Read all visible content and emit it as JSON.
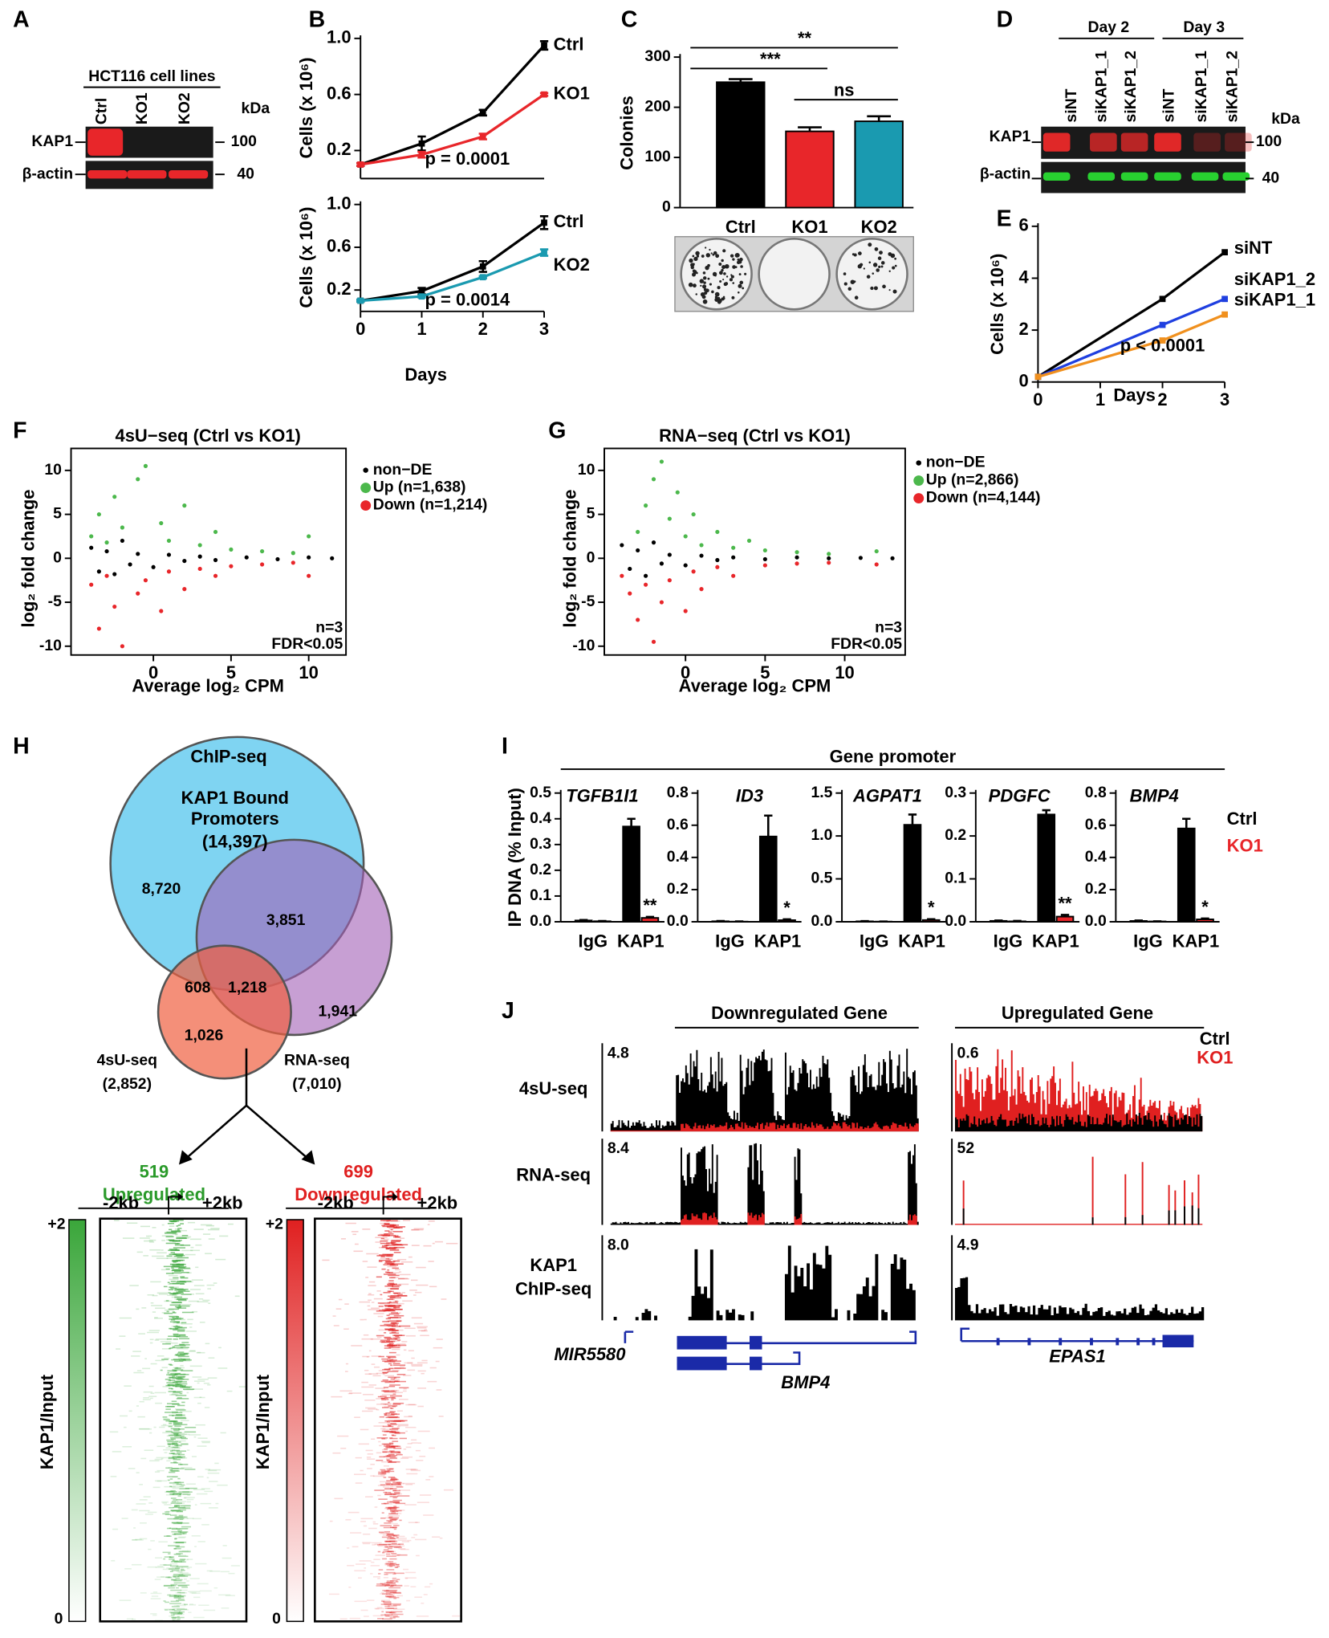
{
  "panel_labels": [
    "A",
    "B",
    "C",
    "D",
    "E",
    "F",
    "G",
    "H",
    "I",
    "J"
  ],
  "panel_a": {
    "header": "HCT116 cell lines",
    "lanes": [
      "Ctrl",
      "KO1",
      "KO2"
    ],
    "unit": "kDa",
    "rows": [
      {
        "name": "KAP1",
        "marker": "100"
      },
      {
        "name": "β-actin",
        "marker": "40"
      }
    ]
  },
  "panel_d": {
    "groups": [
      "Day 2",
      "Day 3"
    ],
    "lanes": [
      "siNT",
      "siKAP1_1",
      "siKAP1_2",
      "siNT",
      "siKAP1_1",
      "siKAP1_2"
    ],
    "unit": "kDa",
    "rows": [
      {
        "name": "KAP1",
        "marker": "100"
      },
      {
        "name": "β-actin",
        "marker": "40"
      }
    ]
  },
  "chart_data": [
    {
      "type": "line",
      "ylabel": "Cells (x 10⁶)",
      "x": [
        0,
        1,
        2,
        3
      ],
      "xlim": [
        0,
        3
      ],
      "ylim": [
        0,
        1
      ],
      "yticks": [
        0.2,
        0.6,
        {
          "value": 1,
          "label": "1.0"
        }
      ],
      "annotation": "p = 0.0001",
      "series": [
        {
          "name": "Ctrl",
          "color": "#000000",
          "values": [
            0.1,
            0.25,
            0.47,
            0.95
          ],
          "errors": [
            0.01,
            0.05,
            0.02,
            0.03
          ]
        },
        {
          "name": "KO1",
          "color": "#e8262a",
          "values": [
            0.1,
            0.17,
            0.3,
            0.6
          ],
          "errors": [
            0.01,
            0.02,
            0.02,
            0.01
          ]
        }
      ]
    },
    {
      "type": "line",
      "ylabel": "Cells (x 10⁶)",
      "xlabel": "Days",
      "x": [
        0,
        1,
        2,
        3
      ],
      "xlim": [
        0,
        3
      ],
      "xticks": [
        0,
        1,
        2,
        3
      ],
      "ylim": [
        0,
        1
      ],
      "yticks": [
        0.2,
        0.6,
        {
          "value": 1,
          "label": "1.0"
        }
      ],
      "annotation": "p = 0.0014",
      "series": [
        {
          "name": "Ctrl",
          "color": "#000000",
          "values": [
            0.1,
            0.19,
            0.42,
            0.83
          ],
          "errors": [
            0.01,
            0.03,
            0.05,
            0.06
          ]
        },
        {
          "name": "KO2",
          "color": "#1a9ab0",
          "values": [
            0.1,
            0.14,
            0.32,
            0.55
          ],
          "errors": [
            0.01,
            0.01,
            0.01,
            0.03
          ]
        }
      ]
    },
    {
      "type": "bar",
      "ylabel": "Colonies",
      "categories": [
        "Ctrl",
        "KO1",
        "KO2"
      ],
      "values": [
        250,
        152,
        172
      ],
      "errors": [
        6,
        8,
        10
      ],
      "colors": [
        "#000000",
        "#e8262a",
        "#1a9ab0"
      ],
      "ylim": [
        0,
        300
      ],
      "yticks": [
        0,
        100,
        200,
        300
      ],
      "annotations": [
        "**",
        "***",
        "ns"
      ]
    },
    {
      "type": "line",
      "ylabel": "Cells (x 10⁶)",
      "xlabel": "Days",
      "x": [
        0,
        2,
        3
      ],
      "xlim": [
        0,
        3
      ],
      "xticks": [
        0,
        1,
        2,
        3
      ],
      "ylim": [
        0,
        6
      ],
      "yticks": [
        0,
        2,
        4,
        6
      ],
      "annotation": "p < 0.0001",
      "series": [
        {
          "name": "siNT",
          "color": "#000000",
          "values": [
            0.2,
            3.2,
            5.0
          ]
        },
        {
          "name": "siKAP1_2",
          "color": "#1f3fe0",
          "values": [
            0.2,
            2.2,
            3.2
          ]
        },
        {
          "name": "siKAP1_1",
          "color": "#f0901e",
          "values": [
            0.2,
            1.6,
            2.6
          ]
        }
      ]
    },
    {
      "type": "scatter",
      "title": "4sU−seq (Ctrl vs KO1)",
      "xlabel": "Average log₂ CPM",
      "ylabel": "log₂ fold change",
      "xlim": [
        -5.3,
        12.4
      ],
      "xticks": [
        0,
        5,
        10
      ],
      "ylim": [
        -11,
        12.5
      ],
      "yticks": [
        -10,
        -5,
        0,
        5,
        10
      ],
      "annotations": [
        "n=3",
        "FDR<0.05"
      ],
      "series": [
        {
          "name": "non−DE",
          "color": "#000000",
          "x": [
            -4,
            -3.5,
            -3,
            -2.5,
            -2,
            -1.5,
            -1,
            0,
            1,
            2,
            3,
            4,
            6,
            8,
            10,
            11.5
          ],
          "values": [
            1.2,
            -1.5,
            0.8,
            -1.8,
            2,
            -0.7,
            0.5,
            -1,
            0.4,
            -0.3,
            0.2,
            -0.2,
            0.1,
            -0.1,
            0.1,
            0
          ]
        },
        {
          "name": "Up (n=1,638)",
          "color": "#4cb84c",
          "x": [
            -4,
            -3.5,
            -3,
            -2.5,
            -2,
            -1,
            -0.5,
            0.5,
            1,
            2,
            3,
            4,
            5,
            7,
            9,
            10
          ],
          "values": [
            2.5,
            5,
            1.8,
            7,
            3.5,
            9,
            10.5,
            4,
            2,
            6,
            1.5,
            3,
            1,
            0.8,
            0.6,
            2.5
          ]
        },
        {
          "name": "Down (n=1,214)",
          "color": "#e8262a",
          "x": [
            -4,
            -3.5,
            -3,
            -2.5,
            -2,
            -1,
            -0.5,
            0.5,
            1,
            2,
            3,
            4,
            5,
            7,
            9,
            10
          ],
          "values": [
            -3,
            -8,
            -2,
            -5.5,
            -10,
            -4,
            -2.5,
            -6,
            -1.5,
            -3.5,
            -1.2,
            -2,
            -0.9,
            -0.7,
            -0.5,
            -2
          ]
        }
      ]
    },
    {
      "type": "scatter",
      "title": "RNA−seq (Ctrl vs KO1)",
      "xlabel": "Average log₂ CPM",
      "ylabel": "log₂ fold change",
      "xlim": [
        -5.1,
        13.8
      ],
      "xticks": [
        0,
        5,
        10
      ],
      "ylim": [
        -11,
        12.5
      ],
      "yticks": [
        -10,
        -5,
        0,
        5,
        10
      ],
      "annotations": [
        "n=3",
        "FDR<0.05"
      ],
      "series": [
        {
          "name": "non−DE",
          "color": "#000000",
          "x": [
            -4,
            -3.5,
            -3,
            -2.5,
            -2,
            -1.5,
            -1,
            0,
            1,
            2,
            3,
            5,
            7,
            9,
            11,
            13
          ],
          "values": [
            1.5,
            -1.2,
            0.9,
            -2,
            1.8,
            -0.6,
            0.4,
            -0.8,
            0.3,
            -0.2,
            0.1,
            -0.1,
            0.1,
            0,
            0.05,
            0
          ]
        },
        {
          "name": "Up (n=2,866)",
          "color": "#4cb84c",
          "x": [
            -3,
            -2.5,
            -2,
            -1.5,
            -1,
            -0.5,
            0,
            0.5,
            1,
            2,
            3,
            4,
            5,
            7,
            9,
            12
          ],
          "values": [
            3,
            6,
            9,
            11,
            4.5,
            7.5,
            2.5,
            5,
            1.5,
            3,
            1.2,
            2,
            0.9,
            0.7,
            0.5,
            0.8
          ]
        },
        {
          "name": "Down (n=4,144)",
          "color": "#e8262a",
          "x": [
            -4,
            -3.5,
            -3,
            -2.5,
            -2,
            -1.5,
            -1,
            0,
            0.5,
            1,
            2,
            3,
            5,
            7,
            9,
            12
          ],
          "values": [
            -2,
            -4,
            -7,
            -3,
            -9.5,
            -5,
            -2.5,
            -6,
            -1.5,
            -3.5,
            -1,
            -2,
            -0.8,
            -0.6,
            -0.5,
            -0.7
          ]
        }
      ]
    },
    {
      "type": "bar",
      "title": "TGFB1I1",
      "ylabel": "IP DNA (% Input)",
      "categories": [
        "IgG",
        "KAP1"
      ],
      "ylim": [
        0,
        0.5
      ],
      "yticks": [
        {
          "value": 0,
          "label": "0.0"
        },
        0.1,
        0.2,
        0.3,
        0.4,
        0.5
      ],
      "annotation": "**",
      "series": [
        {
          "color": "#000000",
          "values": [
            0.005,
            0.37
          ],
          "errors": [
            0.002,
            0.03
          ]
        },
        {
          "color": "#e8262a",
          "values": [
            0.002,
            0.015
          ],
          "errors": [
            0.001,
            0.004
          ]
        }
      ]
    },
    {
      "type": "bar",
      "title": "ID3",
      "categories": [
        "IgG",
        "KAP1"
      ],
      "ylim": [
        0,
        0.8
      ],
      "yticks": [
        {
          "value": 0,
          "label": "0.0"
        },
        0.2,
        0.4,
        0.6,
        0.8
      ],
      "annotation": "*",
      "series": [
        {
          "color": "#000000",
          "values": [
            0.003,
            0.53
          ],
          "errors": [
            0.002,
            0.13
          ]
        },
        {
          "color": "#e8262a",
          "values": [
            0.001,
            0.01
          ],
          "errors": [
            0.001,
            0.005
          ]
        }
      ]
    },
    {
      "type": "bar",
      "title": "AGPAT1",
      "categories": [
        "IgG",
        "KAP1"
      ],
      "ylim": [
        0,
        1.5
      ],
      "yticks": [
        {
          "value": 0,
          "label": "0.0"
        },
        0.5,
        {
          "value": 1,
          "label": "1.0"
        },
        1.5
      ],
      "annotation": "*",
      "series": [
        {
          "color": "#000000",
          "values": [
            0.005,
            1.13
          ],
          "errors": [
            0.003,
            0.12
          ]
        },
        {
          "color": "#e8262a",
          "values": [
            0.002,
            0.02
          ],
          "errors": [
            0.001,
            0.01
          ]
        }
      ]
    },
    {
      "type": "bar",
      "title": "PDGFC",
      "categories": [
        "IgG",
        "KAP1"
      ],
      "ylim": [
        0,
        0.3
      ],
      "yticks": [
        {
          "value": 0,
          "label": "0.0"
        },
        0.1,
        0.2,
        0.3
      ],
      "annotation": "**",
      "series": [
        {
          "color": "#000000",
          "values": [
            0.002,
            0.25
          ],
          "errors": [
            0.001,
            0.01
          ]
        },
        {
          "color": "#e8262a",
          "values": [
            0.001,
            0.012
          ],
          "errors": [
            0.001,
            0.004
          ]
        }
      ]
    },
    {
      "type": "bar",
      "title": "BMP4",
      "categories": [
        "IgG",
        "KAP1"
      ],
      "ylim": [
        0,
        0.8
      ],
      "yticks": [
        {
          "value": 0,
          "label": "0.0"
        },
        0.2,
        0.4,
        0.6,
        0.8
      ],
      "annotation": "*",
      "series": [
        {
          "name": "Ctrl",
          "color": "#000000",
          "values": [
            0.005,
            0.58
          ],
          "errors": [
            0.003,
            0.06
          ]
        },
        {
          "name": "KO1",
          "color": "#e8262a",
          "values": [
            0.002,
            0.015
          ],
          "errors": [
            0.001,
            0.005
          ]
        }
      ]
    }
  ],
  "promoter_title": "Gene promoter",
  "venn": {
    "texts": [
      "ChIP-seq",
      "KAP1 Bound",
      "Promoters",
      "(14,397)",
      "8,720",
      "3,851",
      "1,941",
      "608",
      "1,218",
      "1,026",
      "4sU-seq",
      "(2,852)",
      "RNA-seq",
      "(7,010)"
    ]
  },
  "split": {
    "up_count": "519",
    "up_label": "Upregulated",
    "down_count": "699",
    "down_label": "Downregulated"
  },
  "heatmaps": {
    "scale_max": "+2",
    "scale_min": "0",
    "left": "-2kb",
    "right": "+2kb",
    "ylabel": "KAP1/Input"
  },
  "tracks": {
    "headers": [
      "Downregulated Gene",
      "Upregulated Gene"
    ],
    "legend": [
      "Ctrl",
      "KO1"
    ],
    "row_labels": [
      [
        "4sU-seq"
      ],
      [
        "RNA-seq"
      ],
      [
        "KAP1",
        "ChIP-seq"
      ]
    ],
    "scales_left": [
      "4.8",
      "8.4",
      "8.0"
    ],
    "scales_right": [
      "0.6",
      "52",
      "4.9"
    ],
    "genes": [
      "MIR5580",
      "BMP4",
      "EPAS1"
    ]
  }
}
